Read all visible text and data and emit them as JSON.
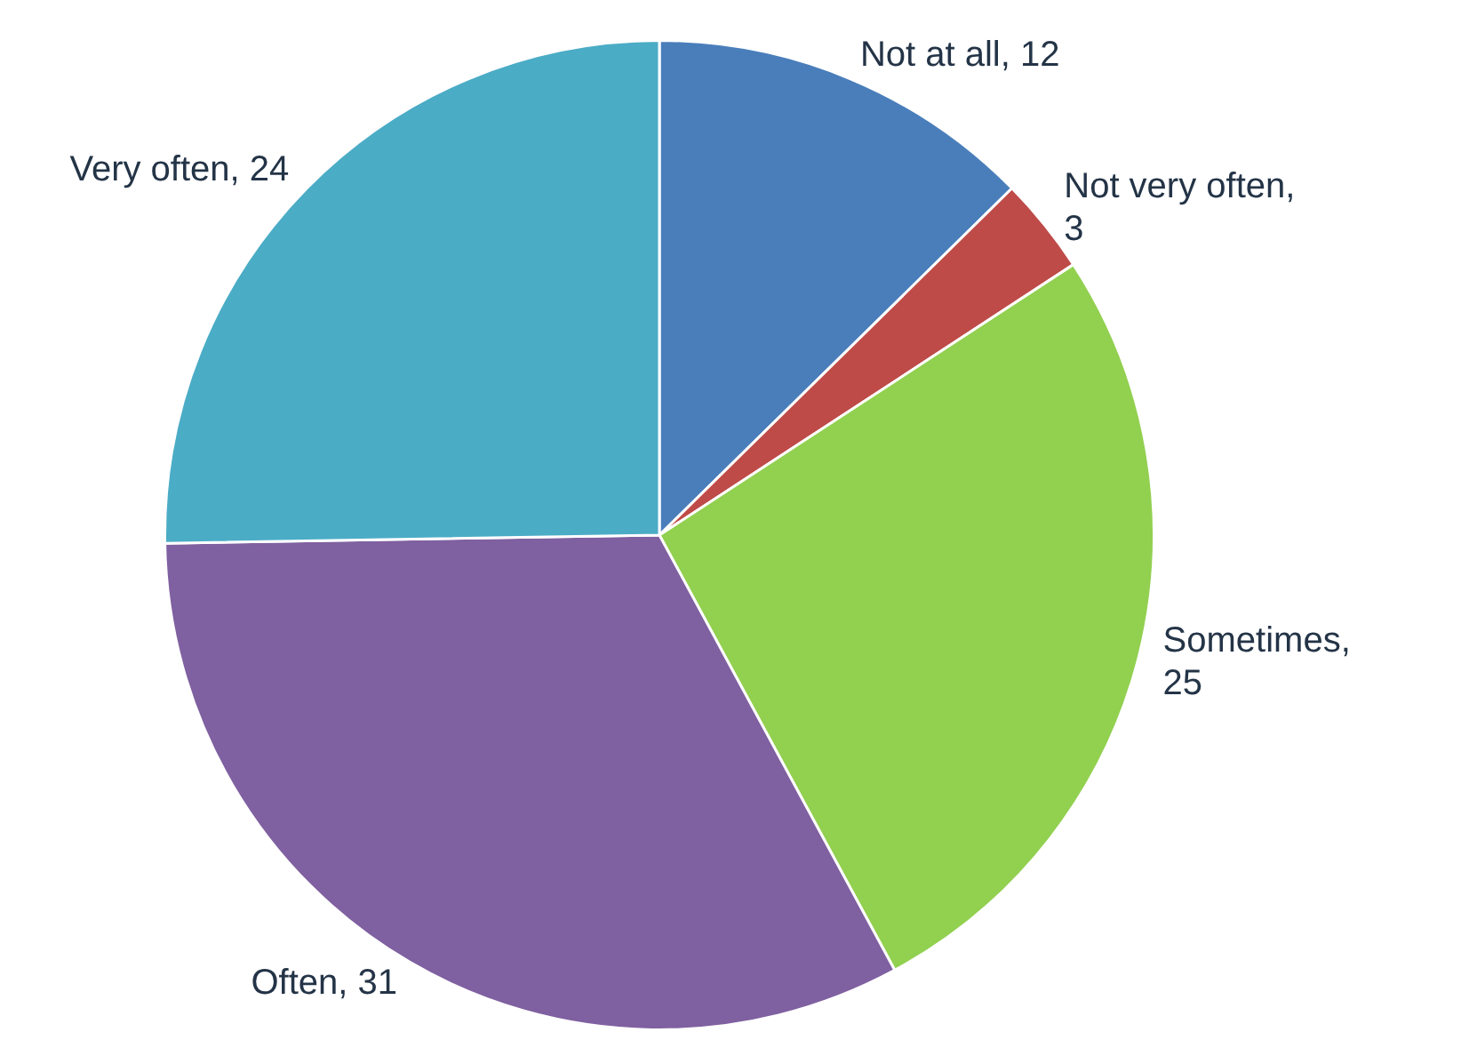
{
  "chart_data": {
    "type": "pie",
    "categories": [
      "Not at all",
      "Not very often",
      "Sometimes",
      "Often",
      "Very often"
    ],
    "values": [
      12,
      3,
      25,
      31,
      24
    ],
    "value_labels": [
      ", 12",
      ", 3",
      ", 25",
      ", 31",
      ", 24"
    ],
    "colors": [
      "#4a7ebb",
      "#be4b48",
      "#92d050",
      "#7f60a0",
      "#4bacc6"
    ],
    "legend": false
  }
}
